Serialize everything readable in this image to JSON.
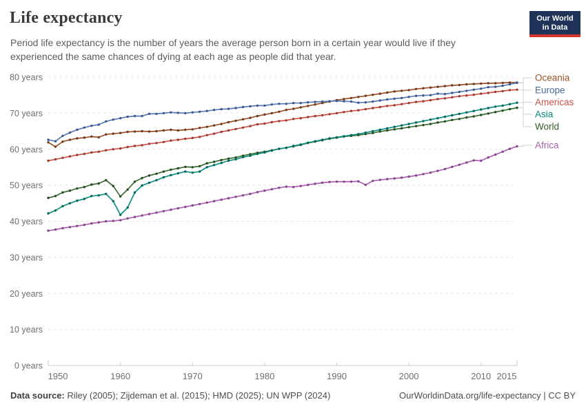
{
  "header": {
    "title": "Life expectancy",
    "subtitle": "Period life expectancy is the number of years the average person born in a certain year would live if they experienced the same chances of dying at each age as people did that year."
  },
  "logo": {
    "line1": "Our World",
    "line2": "in Data",
    "bg_color": "#1f3458",
    "accent_color": "#d0342b"
  },
  "footer": {
    "source_label": "Data source:",
    "source_text": " Riley (2005); Zijdeman et al. (2015); HMD (2025); UN WPP (2024)",
    "right_text": "OurWorldinData.org/life-expectancy | CC BY"
  },
  "chart_data": {
    "type": "line",
    "title": "Life expectancy",
    "xlabel": "",
    "ylabel": "years",
    "ylim": [
      0,
      80
    ],
    "grid": "horizontal-dashed",
    "legend_position": "right",
    "years_start": 1950,
    "years_end": 2015,
    "yticks": [
      {
        "value": 0,
        "label": "0 years"
      },
      {
        "value": 10,
        "label": "10 years"
      },
      {
        "value": 20,
        "label": "20 years"
      },
      {
        "value": 30,
        "label": "30 years"
      },
      {
        "value": 40,
        "label": "40 years"
      },
      {
        "value": 50,
        "label": "50 years"
      },
      {
        "value": 60,
        "label": "60 years"
      },
      {
        "value": 70,
        "label": "70 years"
      },
      {
        "value": 80,
        "label": "80 years"
      }
    ],
    "xticks": [
      {
        "year": 1950,
        "label": "1950"
      },
      {
        "year": 1960,
        "label": "1960"
      },
      {
        "year": 1970,
        "label": "1970"
      },
      {
        "year": 1980,
        "label": "1980"
      },
      {
        "year": 1990,
        "label": "1990"
      },
      {
        "year": 2000,
        "label": "2000"
      },
      {
        "year": 2010,
        "label": "2010"
      },
      {
        "year": 2015,
        "label": "2015"
      }
    ],
    "series": [
      {
        "name": "Oceania",
        "color": "#9a5129",
        "marker_color": "#74391b",
        "label_color": "#9a5129",
        "values": [
          61.9,
          60.7,
          62.1,
          62.6,
          63.0,
          63.2,
          63.5,
          63.3,
          64.1,
          64.3,
          64.5,
          64.8,
          64.9,
          65.0,
          64.9,
          65.0,
          65.2,
          65.4,
          65.2,
          65.4,
          65.5,
          65.9,
          66.2,
          66.6,
          67.0,
          67.5,
          67.9,
          68.3,
          68.7,
          69.2,
          69.6,
          70.0,
          70.4,
          70.9,
          71.2,
          71.6,
          72.0,
          72.4,
          72.8,
          73.2,
          73.6,
          73.9,
          74.2,
          74.5,
          74.8,
          75.1,
          75.4,
          75.7,
          76.0,
          76.2,
          76.4,
          76.7,
          76.9,
          77.1,
          77.3,
          77.5,
          77.7,
          77.8,
          78.0,
          78.1,
          78.2,
          78.3,
          78.3,
          78.4,
          78.5,
          78.5
        ]
      },
      {
        "name": "Europe",
        "color": "#5b7bb0",
        "marker_color": "#3a5796",
        "label_color": "#4c6a9c",
        "values": [
          62.6,
          62.2,
          63.7,
          64.6,
          65.4,
          66.0,
          66.5,
          66.8,
          67.7,
          68.2,
          68.6,
          69.0,
          69.2,
          69.2,
          69.8,
          69.8,
          70.0,
          70.2,
          70.1,
          70.0,
          70.2,
          70.4,
          70.6,
          70.9,
          71.1,
          71.2,
          71.4,
          71.7,
          71.9,
          72.1,
          72.1,
          72.4,
          72.6,
          72.6,
          72.8,
          72.8,
          73.0,
          73.1,
          73.2,
          73.3,
          73.4,
          73.3,
          73.2,
          72.9,
          73.0,
          73.2,
          73.5,
          73.8,
          74.0,
          74.2,
          74.5,
          74.8,
          74.9,
          75.0,
          75.4,
          75.3,
          75.6,
          75.9,
          76.2,
          76.5,
          76.8,
          77.2,
          77.3,
          77.6,
          78.0,
          78.4
        ]
      },
      {
        "name": "Americas",
        "color": "#c9534b",
        "marker_color": "#a0382f",
        "label_color": "#c9534b",
        "values": [
          56.8,
          57.2,
          57.6,
          58.0,
          58.4,
          58.7,
          59.1,
          59.3,
          59.7,
          60.0,
          60.2,
          60.6,
          60.9,
          61.1,
          61.5,
          61.7,
          62.0,
          62.4,
          62.6,
          62.9,
          63.1,
          63.4,
          63.9,
          64.3,
          64.8,
          65.2,
          65.6,
          66.0,
          66.4,
          66.9,
          67.1,
          67.5,
          67.8,
          68.0,
          68.4,
          68.6,
          68.9,
          69.2,
          69.4,
          69.7,
          70.0,
          70.3,
          70.6,
          70.8,
          71.1,
          71.4,
          71.7,
          72.0,
          72.2,
          72.5,
          72.8,
          73.1,
          73.3,
          73.6,
          73.9,
          74.1,
          74.4,
          74.7,
          74.9,
          75.1,
          75.4,
          75.6,
          75.9,
          76.1,
          76.4,
          76.5
        ]
      },
      {
        "name": "Asia",
        "color": "#0f8f80",
        "marker_color": "#00665b",
        "label_color": "#00847e",
        "values": [
          42.2,
          43.0,
          44.2,
          45.0,
          45.7,
          46.2,
          47.0,
          47.2,
          47.6,
          45.6,
          41.8,
          43.8,
          48.0,
          49.9,
          50.7,
          51.4,
          52.2,
          52.8,
          53.3,
          53.8,
          53.5,
          53.8,
          55.0,
          55.6,
          56.2,
          56.8,
          57.2,
          57.8,
          58.2,
          58.7,
          59.1,
          59.6,
          60.1,
          60.4,
          60.9,
          61.3,
          61.8,
          62.2,
          62.6,
          63.0,
          63.3,
          63.6,
          63.9,
          64.2,
          64.6,
          65.0,
          65.4,
          65.8,
          66.2,
          66.6,
          67.0,
          67.4,
          67.8,
          68.2,
          68.6,
          69.0,
          69.4,
          69.8,
          70.2,
          70.6,
          71.0,
          71.4,
          71.8,
          72.1,
          72.5,
          72.9
        ]
      },
      {
        "name": "World",
        "color": "#3d6c34",
        "marker_color": "#224e1f",
        "label_color": "#33592b",
        "values": [
          46.5,
          47.0,
          48.0,
          48.5,
          49.1,
          49.5,
          50.2,
          50.5,
          51.4,
          49.8,
          46.9,
          48.8,
          51.0,
          52.0,
          52.7,
          53.2,
          53.8,
          54.3,
          54.7,
          55.1,
          55.0,
          55.3,
          56.1,
          56.5,
          57.0,
          57.4,
          57.7,
          58.2,
          58.6,
          59.0,
          59.3,
          59.7,
          60.1,
          60.4,
          60.8,
          61.2,
          61.7,
          62.1,
          62.5,
          62.9,
          63.2,
          63.5,
          63.7,
          63.9,
          64.2,
          64.5,
          64.9,
          65.2,
          65.5,
          65.8,
          66.1,
          66.4,
          66.7,
          67.0,
          67.4,
          67.7,
          68.1,
          68.4,
          68.8,
          69.1,
          69.5,
          69.9,
          70.3,
          70.7,
          71.1,
          71.5
        ]
      },
      {
        "name": "Africa",
        "color": "#ab63b0",
        "marker_color": "#87438f",
        "label_color": "#a660ab",
        "values": [
          37.4,
          37.7,
          38.1,
          38.4,
          38.7,
          39.0,
          39.4,
          39.7,
          40.0,
          40.1,
          40.3,
          40.8,
          41.2,
          41.6,
          42.0,
          42.4,
          42.8,
          43.2,
          43.6,
          44.0,
          44.4,
          44.8,
          45.2,
          45.6,
          46.0,
          46.4,
          46.8,
          47.2,
          47.6,
          48.1,
          48.5,
          48.9,
          49.3,
          49.6,
          49.5,
          49.8,
          50.1,
          50.4,
          50.7,
          50.9,
          51.0,
          51.0,
          51.0,
          51.1,
          50.1,
          51.2,
          51.5,
          51.7,
          51.9,
          52.1,
          52.4,
          52.7,
          53.1,
          53.5,
          54.0,
          54.5,
          55.1,
          55.7,
          56.3,
          56.9,
          56.8,
          57.7,
          58.5,
          59.3,
          60.1,
          60.8
        ]
      }
    ]
  }
}
